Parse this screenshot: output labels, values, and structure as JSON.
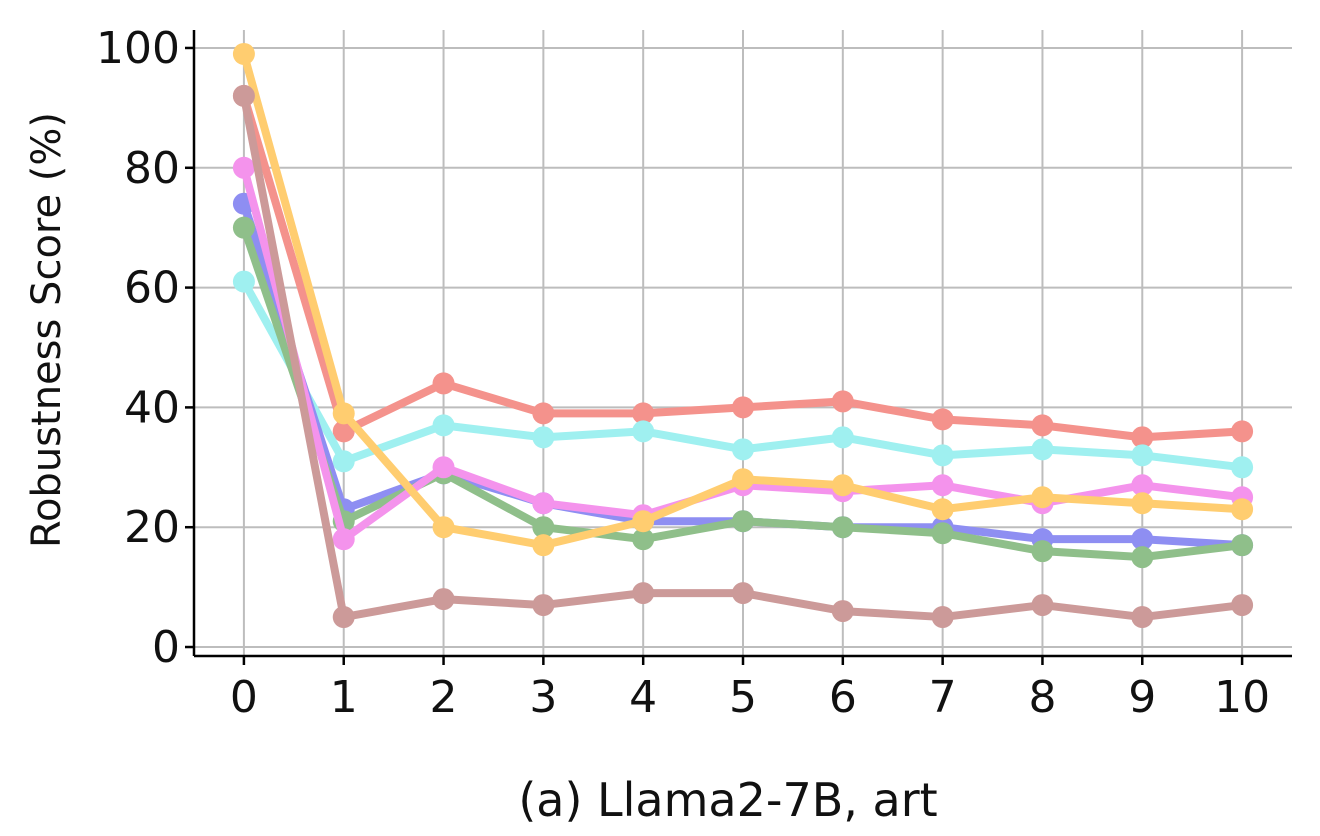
{
  "chart_data": {
    "type": "line",
    "title": "",
    "caption": "(a) Llama2-7B, art",
    "xlabel": "",
    "ylabel": "Robustness Score (%)",
    "x": [
      0,
      1,
      2,
      3,
      4,
      5,
      6,
      7,
      8,
      9,
      10
    ],
    "x_tick_labels": [
      "0",
      "1",
      "2",
      "3",
      "4",
      "5",
      "6",
      "7",
      "8",
      "9",
      "10"
    ],
    "y_ticks": [
      0,
      20,
      40,
      60,
      80,
      100
    ],
    "y_tick_labels": [
      "0",
      "20",
      "40",
      "60",
      "80",
      "100"
    ],
    "xlim": [
      -0.5,
      10.5
    ],
    "ylim": [
      -1.5,
      103
    ],
    "grid": true,
    "legend": "none",
    "series": [
      {
        "color": "#f4928c",
        "values": [
          92,
          36,
          44,
          39,
          39,
          40,
          41,
          38,
          37,
          35,
          36
        ]
      },
      {
        "color": "#9ff0f0",
        "values": [
          61,
          31,
          37,
          35,
          36,
          33,
          35,
          32,
          33,
          32,
          30
        ]
      },
      {
        "color": "#8e8ef2",
        "values": [
          74,
          23,
          29,
          24,
          21,
          21,
          20,
          20,
          18,
          18,
          17
        ]
      },
      {
        "color": "#8fbf8a",
        "values": [
          70,
          21,
          29,
          20,
          18,
          21,
          20,
          19,
          16,
          15,
          17
        ]
      },
      {
        "color": "#f493ec",
        "values": [
          80,
          18,
          30,
          24,
          22,
          27,
          26,
          27,
          24,
          27,
          25
        ]
      },
      {
        "color": "#ffcd70",
        "values": [
          99,
          39,
          20,
          17,
          21,
          28,
          27,
          23,
          25,
          24,
          23
        ]
      },
      {
        "color": "#cc9a99",
        "values": [
          92,
          5,
          8,
          7,
          9,
          9,
          6,
          5,
          7,
          5,
          7
        ]
      }
    ]
  }
}
